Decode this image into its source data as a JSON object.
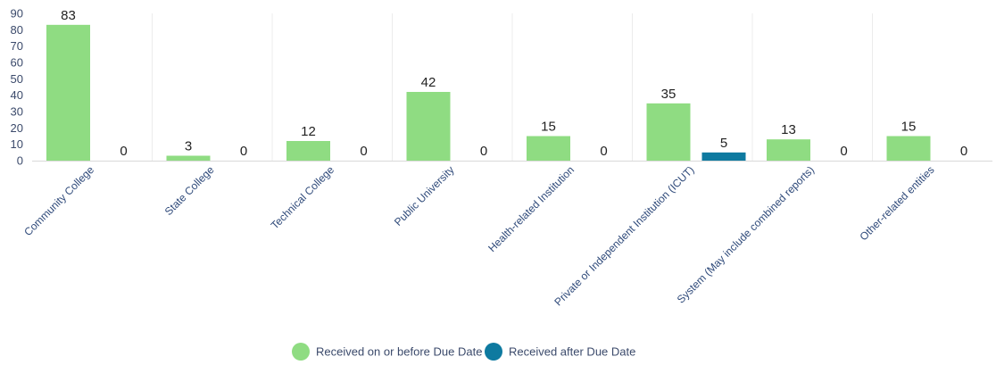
{
  "chart_data": {
    "type": "bar",
    "categories": [
      "Community College",
      "State College",
      "Technical College",
      "Public University",
      "Health-related Institution",
      "Private or Independent Institution (ICUT)",
      "System (May include combined reports)",
      "Other-related entities"
    ],
    "series": [
      {
        "name": "Received on or before Due Date",
        "values": [
          83,
          3,
          12,
          42,
          15,
          35,
          13,
          15
        ],
        "color": "#8fdc82"
      },
      {
        "name": "Received after Due Date",
        "values": [
          0,
          0,
          0,
          0,
          0,
          5,
          0,
          0
        ],
        "color": "#0e7aa0"
      }
    ],
    "yticks": [
      "0",
      "10",
      "20",
      "30",
      "40",
      "50",
      "60",
      "70",
      "80",
      "90"
    ],
    "ylim": [
      0,
      90
    ],
    "grid": "vertical",
    "legend_position": "bottom-center"
  }
}
